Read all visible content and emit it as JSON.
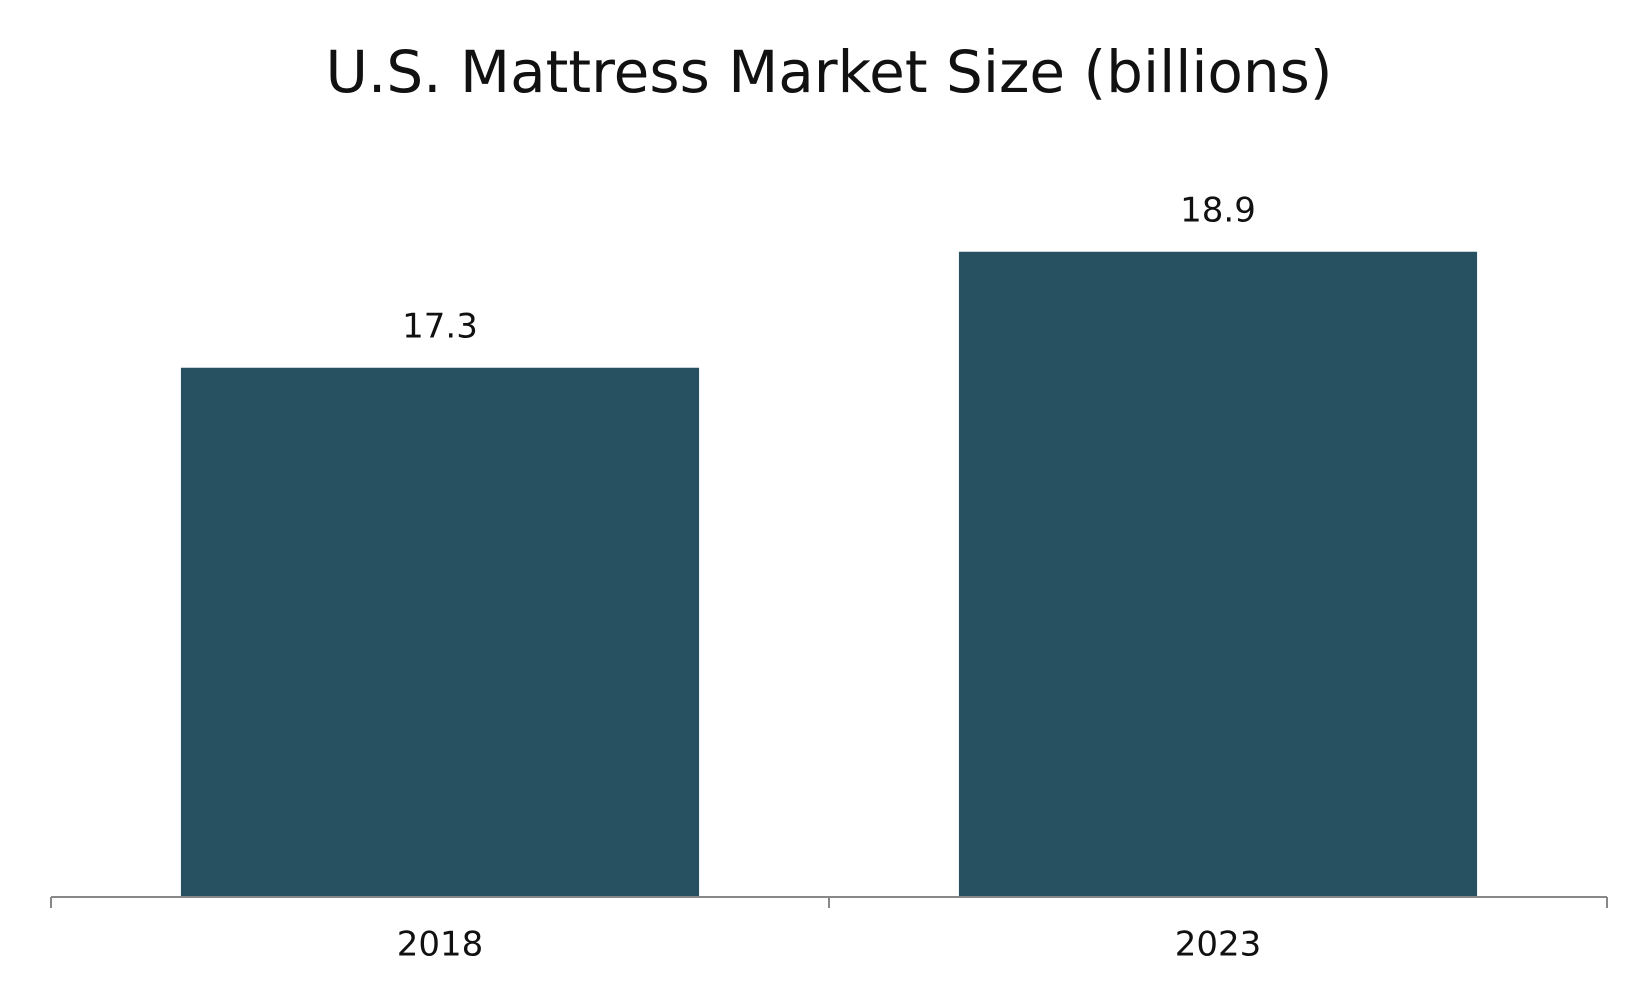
{
  "chart_data": {
    "type": "bar",
    "title": "U.S. Mattress Market Size (billions)",
    "categories": [
      "2018",
      "2023"
    ],
    "values": [
      17.3,
      18.9
    ],
    "color": "#275160",
    "ylim": [
      10,
      20
    ]
  }
}
